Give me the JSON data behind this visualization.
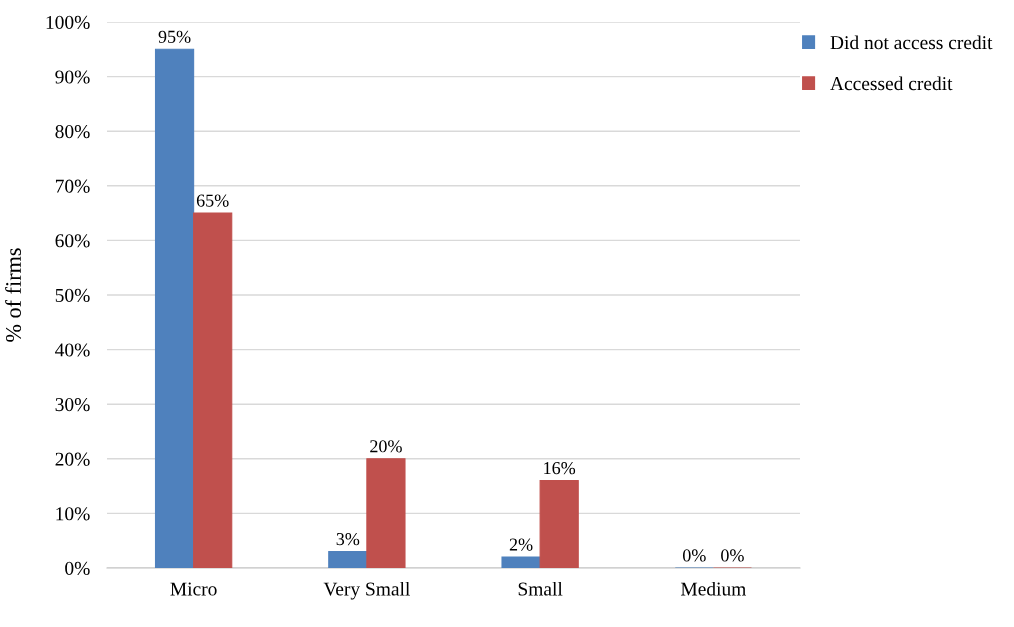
{
  "chart_data": {
    "type": "bar",
    "ylabel": "% of firms",
    "categories": [
      "Micro",
      "Very Small",
      "Small",
      "Medium"
    ],
    "series": [
      {
        "name": "Did not access credit",
        "color": "#4f81bd",
        "values": [
          95,
          3,
          2,
          0
        ],
        "value_labels": [
          "95%",
          "3%",
          "2%",
          "0%"
        ]
      },
      {
        "name": "Accessed credit",
        "color": "#c0504d",
        "values": [
          65,
          20,
          16,
          0
        ],
        "value_labels": [
          "65%",
          "20%",
          "16%",
          "0%"
        ]
      }
    ],
    "ylim": [
      0,
      100
    ],
    "yticks": [
      {
        "value": 0,
        "label": "0%"
      },
      {
        "value": 10,
        "label": "10%"
      },
      {
        "value": 20,
        "label": "20%"
      },
      {
        "value": 30,
        "label": "30%"
      },
      {
        "value": 40,
        "label": "40%"
      },
      {
        "value": 50,
        "label": "50%"
      },
      {
        "value": 60,
        "label": "60%"
      },
      {
        "value": 70,
        "label": "70%"
      },
      {
        "value": 80,
        "label": "80%"
      },
      {
        "value": 90,
        "label": "90%"
      },
      {
        "value": 100,
        "label": "100%"
      }
    ],
    "grid": "y",
    "legend": "top right"
  }
}
